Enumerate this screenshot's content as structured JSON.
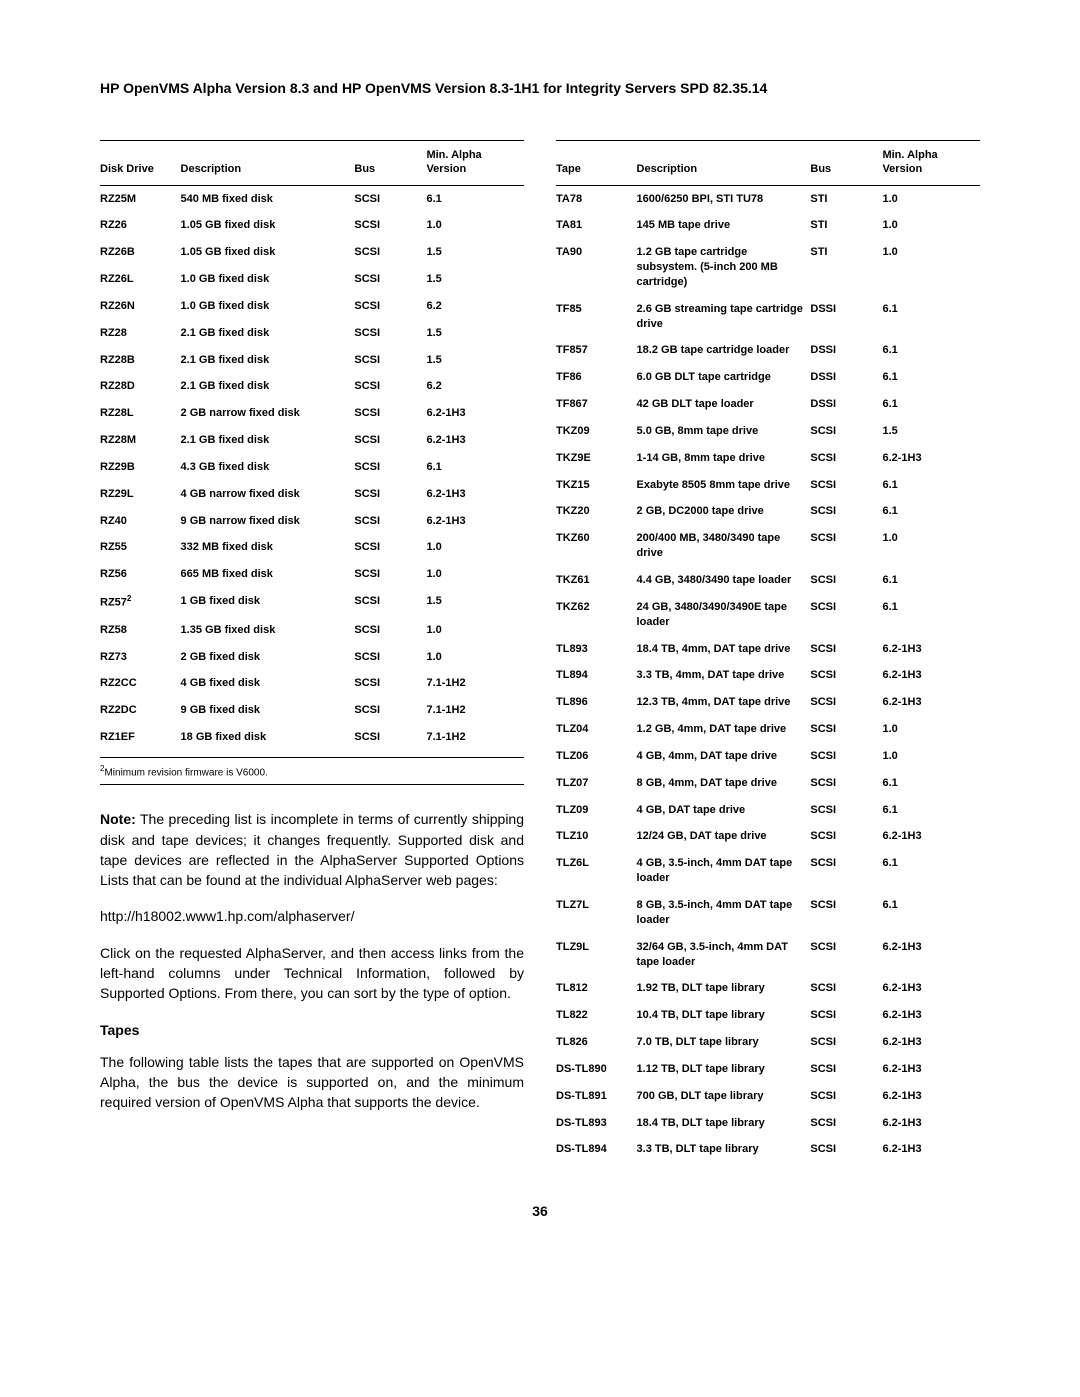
{
  "header": "HP OpenVMS Alpha Version 8.3 and HP OpenVMS Version 8.3-1H1 for Integrity Servers   SPD 82.35.14",
  "page_number": "36",
  "left_table": {
    "columns": [
      "Disk Drive",
      "Description",
      "Bus",
      "Min. Alpha\nVersion"
    ],
    "rows": [
      [
        "RZ25M",
        "540 MB fixed disk",
        "SCSI",
        "6.1"
      ],
      [
        "RZ26",
        "1.05 GB fixed disk",
        "SCSI",
        "1.0"
      ],
      [
        "RZ26B",
        "1.05 GB fixed disk",
        "SCSI",
        "1.5"
      ],
      [
        "RZ26L",
        "1.0 GB fixed disk",
        "SCSI",
        "1.5"
      ],
      [
        "RZ26N",
        "1.0 GB fixed disk",
        "SCSI",
        "6.2"
      ],
      [
        "RZ28",
        "2.1 GB fixed disk",
        "SCSI",
        "1.5"
      ],
      [
        "RZ28B",
        "2.1 GB fixed disk",
        "SCSI",
        "1.5"
      ],
      [
        "RZ28D",
        "2.1 GB fixed disk",
        "SCSI",
        "6.2"
      ],
      [
        "RZ28L",
        "2 GB narrow fixed disk",
        "SCSI",
        "6.2-1H3"
      ],
      [
        "RZ28M",
        "2.1 GB fixed disk",
        "SCSI",
        "6.2-1H3"
      ],
      [
        "RZ29B",
        "4.3 GB fixed disk",
        "SCSI",
        "6.1"
      ],
      [
        "RZ29L",
        "4 GB narrow fixed disk",
        "SCSI",
        "6.2-1H3"
      ],
      [
        "RZ40",
        "9 GB narrow fixed disk",
        "SCSI",
        "6.2-1H3"
      ],
      [
        "RZ55",
        "332 MB fixed disk",
        "SCSI",
        "1.0"
      ],
      [
        "RZ56",
        "665 MB fixed disk",
        "SCSI",
        "1.0"
      ],
      [
        "RZ57",
        "1 GB fixed disk",
        "SCSI",
        "1.5"
      ],
      [
        "RZ58",
        "1.35 GB fixed disk",
        "SCSI",
        "1.0"
      ],
      [
        "RZ73",
        "2 GB fixed disk",
        "SCSI",
        "1.0"
      ],
      [
        "RZ2CC",
        "4 GB fixed disk",
        "SCSI",
        "7.1-1H2"
      ],
      [
        "RZ2DC",
        "9 GB fixed disk",
        "SCSI",
        "7.1-1H2"
      ],
      [
        "RZ1EF",
        "18 GB fixed disk",
        "SCSI",
        "7.1-1H2"
      ]
    ],
    "footnote_index": 15,
    "footnote_marker": "2",
    "footnote_text": "Minimum revision firmware is V6000."
  },
  "right_table": {
    "columns": [
      "Tape",
      "Description",
      "Bus",
      "Min. Alpha\nVersion"
    ],
    "rows": [
      [
        "TA78",
        "1600/6250 BPI, STI TU78",
        "STI",
        "1.0"
      ],
      [
        "TA81",
        "145 MB tape drive",
        "STI",
        "1.0"
      ],
      [
        "TA90",
        "1.2 GB tape cartridge subsystem. (5-inch 200 MB cartridge)",
        "STI",
        "1.0"
      ],
      [
        "TF85",
        "2.6 GB streaming tape cartridge drive",
        "DSSI",
        "6.1"
      ],
      [
        "TF857",
        "18.2 GB tape cartridge loader",
        "DSSI",
        "6.1"
      ],
      [
        "TF86",
        "6.0 GB DLT tape cartridge",
        "DSSI",
        "6.1"
      ],
      [
        "TF867",
        "42 GB DLT tape loader",
        "DSSI",
        "6.1"
      ],
      [
        "TKZ09",
        "5.0 GB, 8mm tape drive",
        "SCSI",
        "1.5"
      ],
      [
        "TKZ9E",
        "1-14 GB, 8mm tape drive",
        "SCSI",
        "6.2-1H3"
      ],
      [
        "TKZ15",
        "Exabyte 8505 8mm tape drive",
        "SCSI",
        "6.1"
      ],
      [
        "TKZ20",
        "2 GB, DC2000 tape drive",
        "SCSI",
        "6.1"
      ],
      [
        "TKZ60",
        "200/400 MB, 3480/3490 tape drive",
        "SCSI",
        "1.0"
      ],
      [
        "TKZ61",
        "4.4 GB, 3480/3490 tape loader",
        "SCSI",
        "6.1"
      ],
      [
        "TKZ62",
        "24 GB, 3480/3490/3490E tape loader",
        "SCSI",
        "6.1"
      ],
      [
        "TL893",
        "18.4 TB, 4mm, DAT tape drive",
        "SCSI",
        "6.2-1H3"
      ],
      [
        "TL894",
        "3.3 TB, 4mm, DAT tape drive",
        "SCSI",
        "6.2-1H3"
      ],
      [
        "TL896",
        "12.3 TB, 4mm, DAT tape drive",
        "SCSI",
        "6.2-1H3"
      ],
      [
        "TLZ04",
        "1.2 GB, 4mm, DAT tape drive",
        "SCSI",
        "1.0"
      ],
      [
        "TLZ06",
        "4 GB, 4mm, DAT tape drive",
        "SCSI",
        "1.0"
      ],
      [
        "TLZ07",
        "8 GB, 4mm, DAT tape drive",
        "SCSI",
        "6.1"
      ],
      [
        "TLZ09",
        "4 GB, DAT tape drive",
        "SCSI",
        "6.1"
      ],
      [
        "TLZ10",
        "12/24 GB, DAT tape drive",
        "SCSI",
        "6.2-1H3"
      ],
      [
        "TLZ6L",
        "4 GB, 3.5-inch, 4mm DAT tape loader",
        "SCSI",
        "6.1"
      ],
      [
        "TLZ7L",
        "8 GB, 3.5-inch, 4mm DAT tape loader",
        "SCSI",
        "6.1"
      ],
      [
        "TLZ9L",
        "32/64 GB, 3.5-inch, 4mm DAT tape loader",
        "SCSI",
        "6.2-1H3"
      ],
      [
        "TL812",
        "1.92 TB, DLT tape library",
        "SCSI",
        "6.2-1H3"
      ],
      [
        "TL822",
        "10.4 TB, DLT tape library",
        "SCSI",
        "6.2-1H3"
      ],
      [
        "TL826",
        "7.0 TB, DLT tape library",
        "SCSI",
        "6.2-1H3"
      ],
      [
        "DS-TL890",
        "1.12 TB, DLT tape library",
        "SCSI",
        "6.2-1H3"
      ],
      [
        "DS-TL891",
        "700 GB, DLT tape library",
        "SCSI",
        "6.2-1H3"
      ],
      [
        "DS-TL893",
        "18.4 TB, DLT tape library",
        "SCSI",
        "6.2-1H3"
      ],
      [
        "DS-TL894",
        "3.3 TB, DLT tape library",
        "SCSI",
        "6.2-1H3"
      ]
    ]
  },
  "body": {
    "note_label": "Note:",
    "note_text": "The preceding list is incomplete in terms of currently shipping disk and tape devices; it changes frequently. Supported disk and tape devices are reflected in the AlphaServer Supported Options Lists that can be found at the individual AlphaServer web pages:",
    "url": "http://h18002.www1.hp.com/alphaserver/",
    "after_url": "Click on the requested AlphaServer, and then access links from the left-hand columns under Technical Information, followed by Supported Options. From there, you can sort by the type of option.",
    "tapes_heading": "Tapes",
    "tapes_intro": "The following table lists the tapes that are supported on OpenVMS Alpha, the bus the device is supported on, and the minimum required version of OpenVMS Alpha that supports the device."
  }
}
